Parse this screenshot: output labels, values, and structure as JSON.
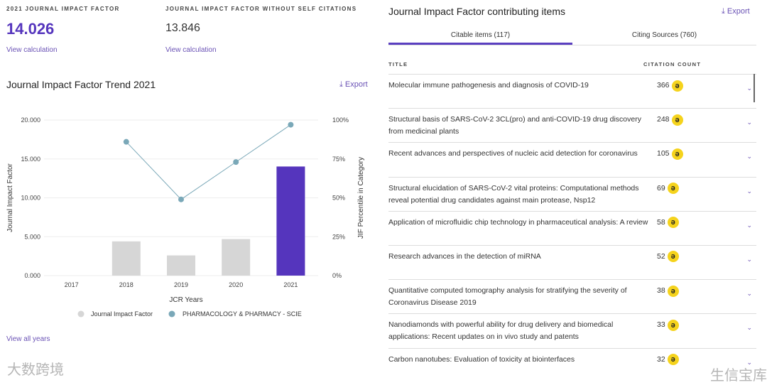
{
  "metrics": {
    "jif_label": "2021 JOURNAL IMPACT FACTOR",
    "jif_value": "14.026",
    "jif_link": "View calculation",
    "nosc_label": "JOURNAL IMPACT FACTOR WITHOUT SELF CITATIONS",
    "nosc_value": "13.846",
    "nosc_link": "View calculation"
  },
  "trend": {
    "title": "Journal Impact Factor Trend 2021",
    "export": "Export",
    "view_all": "View all years"
  },
  "chart_data": {
    "type": "bar",
    "title": "Journal Impact Factor Trend 2021",
    "categories": [
      "2017",
      "2018",
      "2019",
      "2020",
      "2021"
    ],
    "series": [
      {
        "name": "Journal Impact Factor",
        "type": "bar",
        "values": [
          null,
          4.4,
          2.6,
          4.7,
          14.026
        ],
        "color": "#d6d6d6",
        "highlight_color": "#5535bd"
      },
      {
        "name": "PHARMACOLOGY & PHARMACY - SCIE",
        "type": "line",
        "axis": "right",
        "values": [
          null,
          86,
          49,
          73,
          97
        ],
        "color": "#7aa8b8"
      }
    ],
    "xlabel": "JCR Years",
    "ylabel": "Journal Impact Factor",
    "ylabel_right": "JIF Percentile in Category",
    "ylim": [
      0,
      20
    ],
    "yticks": [
      "0.000",
      "5.000",
      "10.000",
      "15.000",
      "20.000"
    ],
    "ylim_right": [
      0,
      100
    ],
    "yticks_right": [
      "0%",
      "25%",
      "50%",
      "75%",
      "100%"
    ],
    "grid": true,
    "legend": "bottom"
  },
  "items": {
    "title": "Journal Impact Factor contributing items",
    "export": "Export",
    "tabs": [
      {
        "label": "Citable items (117)"
      },
      {
        "label": "Citing Sources (760)"
      }
    ],
    "col_title": "TITLE",
    "col_count": "CITATION COUNT",
    "rows": [
      {
        "title": "Molecular immune pathogenesis and diagnosis of COVID-19",
        "count": "366"
      },
      {
        "title": "Structural basis of SARS-CoV-2 3CL(pro) and anti-COVID-19 drug discovery from medicinal plants",
        "count": "248"
      },
      {
        "title": "Recent advances and perspectives of nucleic acid detection for coronavirus",
        "count": "105"
      },
      {
        "title": "Structural elucidation of SARS-CoV-2 vital proteins: Computational methods reveal potential drug candidates against main protease, Nsp12",
        "count": "69"
      },
      {
        "title": "Application of microfluidic chip technology in pharmaceutical analysis: A review",
        "count": "58"
      },
      {
        "title": "Research advances in the detection of miRNA",
        "count": "52"
      },
      {
        "title": "Quantitative computed tomography analysis for stratifying the severity of Coronavirus Disease 2019",
        "count": "38"
      },
      {
        "title": "Nanodiamonds with powerful ability for drug delivery and biomedical applications: Recent updates on in vivo study and patents",
        "count": "33"
      },
      {
        "title": "Carbon nanotubes: Evaluation of toxicity at biointerfaces",
        "count": "32"
      }
    ]
  },
  "watermarks": {
    "left": "大数跨境",
    "right": "生信宝库"
  }
}
